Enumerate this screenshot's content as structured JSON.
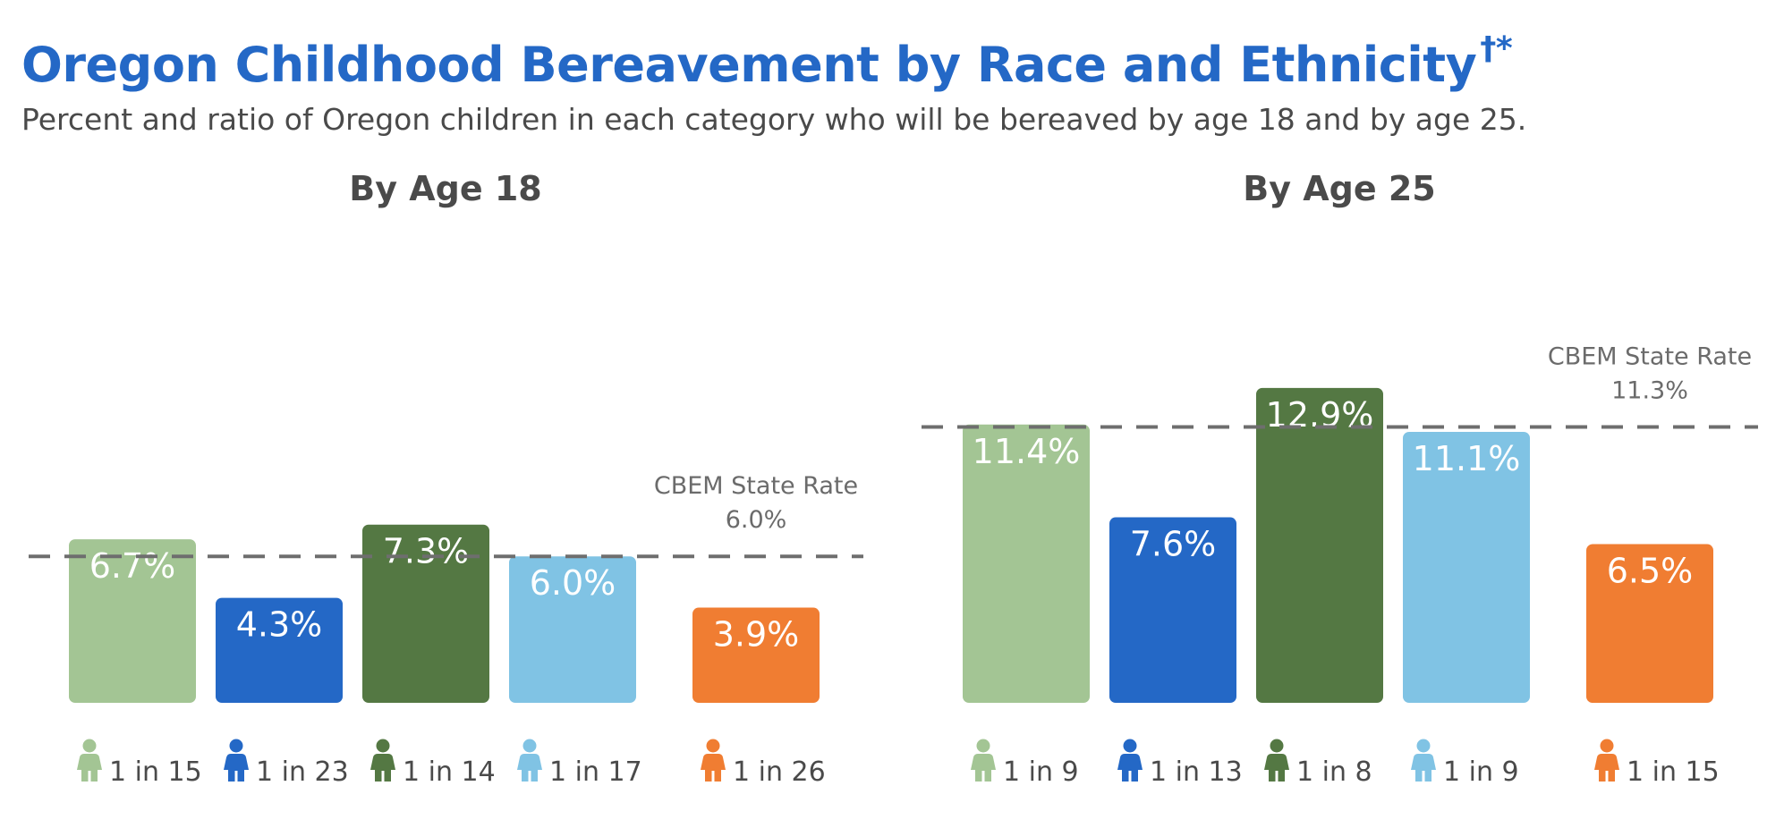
{
  "header": {
    "title": "Oregon Childhood Bereavement by Race and Ethnicity",
    "title_marks": "†*",
    "subtitle": "Percent and ratio of Oregon children in each category who will be bereaved by age 18 and by age 25."
  },
  "colors": [
    "#a3c594",
    "#2468c6",
    "#547843",
    "#80c3e4",
    "#f07d32"
  ],
  "chart_data": [
    {
      "type": "bar",
      "title": "By Age 18",
      "values": [
        6.7,
        4.3,
        7.3,
        6.0,
        3.9
      ],
      "value_labels": [
        "6.7%",
        "4.3%",
        "7.3%",
        "6.0%",
        "3.9%"
      ],
      "ratios": [
        "1 in 15",
        "1 in 23",
        "1 in 14",
        "1 in 17",
        "1 in 26"
      ],
      "reference_line": {
        "label": "CBEM State Rate",
        "value": 6.0,
        "value_label": "6.0%"
      }
    },
    {
      "type": "bar",
      "title": "By Age 25",
      "values": [
        11.4,
        7.6,
        12.9,
        11.1,
        6.5
      ],
      "value_labels": [
        "11.4%",
        "7.6%",
        "12.9%",
        "11.1%",
        "6.5%"
      ],
      "ratios": [
        "1 in 9",
        "1 in 13",
        "1 in 8",
        "1 in 9",
        "1 in 15"
      ],
      "reference_line": {
        "label": "CBEM State Rate",
        "value": 11.3,
        "value_label": "11.3%"
      }
    }
  ]
}
